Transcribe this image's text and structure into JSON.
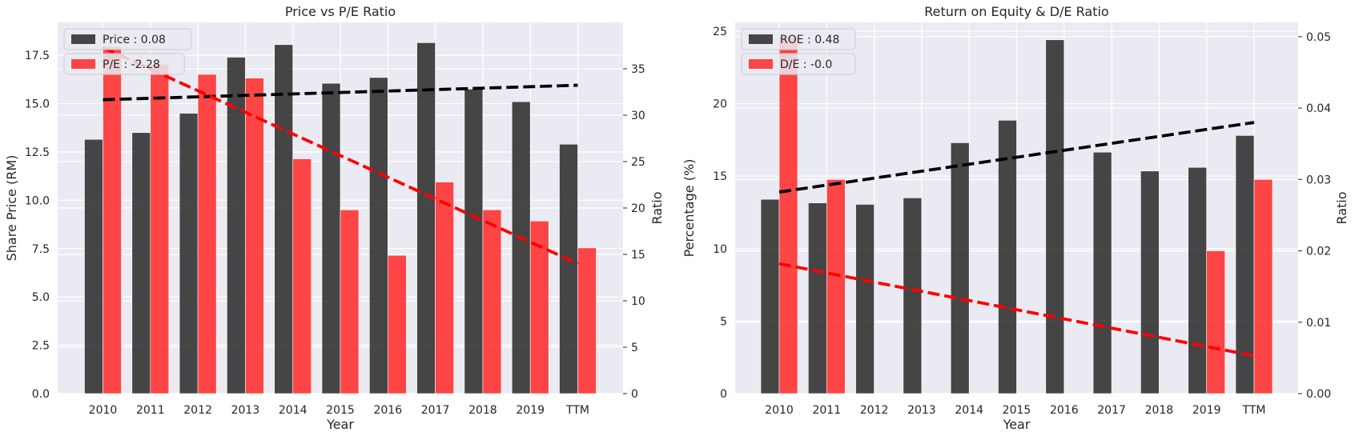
{
  "chart_data": [
    {
      "type": "bar",
      "title": "Price vs P/E Ratio",
      "xlabel": "Year",
      "ylabel": "Share Price (RM)",
      "ylabel_right": "Ratio",
      "categories": [
        "2010",
        "2011",
        "2012",
        "2013",
        "2014",
        "2015",
        "2016",
        "2017",
        "2018",
        "2019",
        "TTM"
      ],
      "ylim": [
        0,
        19.2
      ],
      "ylim_right": [
        0,
        40
      ],
      "yticks": [
        "0.0",
        "2.5",
        "5.0",
        "7.5",
        "10.0",
        "12.5",
        "15.0",
        "17.5"
      ],
      "yticks_right": [
        "0",
        "5",
        "10",
        "15",
        "20",
        "25",
        "30",
        "35"
      ],
      "grid": true,
      "legend_position": "top-left",
      "series": [
        {
          "name": "Price : 0.08",
          "axis": "left",
          "color": "#333333",
          "values": [
            13.15,
            13.5,
            14.5,
            17.4,
            18.05,
            16.05,
            16.35,
            18.15,
            15.75,
            15.1,
            12.9
          ]
        },
        {
          "name": "P/E : -2.28",
          "axis": "right",
          "color": "#ff3333",
          "values": [
            37.4,
            35.5,
            34.4,
            34.0,
            25.3,
            19.8,
            14.9,
            22.8,
            19.8,
            18.6,
            15.7
          ]
        }
      ],
      "trendlines": [
        {
          "axis": "left",
          "color": "#000000",
          "from": [
            0,
            15.2
          ],
          "to": [
            10,
            15.95
          ]
        },
        {
          "axis": "right",
          "color": "#ff0000",
          "from": [
            0,
            37.3
          ],
          "to": [
            10,
            14.0
          ]
        }
      ]
    },
    {
      "type": "bar",
      "title": "Return on Equity & D/E Ratio",
      "xlabel": "Year",
      "ylabel": "Percentage (%)",
      "ylabel_right": "Ratio",
      "categories": [
        "2010",
        "2011",
        "2012",
        "2013",
        "2014",
        "2015",
        "2016",
        "2017",
        "2018",
        "2019",
        "TTM"
      ],
      "ylim": [
        0,
        25.6
      ],
      "ylim_right": [
        0,
        0.052
      ],
      "yticks": [
        "0",
        "5",
        "10",
        "15",
        "20",
        "25"
      ],
      "yticks_right": [
        "0.00",
        "0.01",
        "0.02",
        "0.03",
        "0.04",
        "0.05"
      ],
      "grid": true,
      "legend_position": "top-left",
      "series": [
        {
          "name": "ROE : 0.48",
          "axis": "left",
          "color": "#333333",
          "values": [
            13.4,
            13.15,
            13.05,
            13.5,
            17.3,
            18.85,
            24.4,
            16.65,
            15.35,
            15.6,
            17.8
          ]
        },
        {
          "name": "D/E : -0.0",
          "axis": "right",
          "color": "#ff3333",
          "values": [
            0.05,
            0.03,
            0,
            0,
            0,
            0,
            0,
            0,
            0,
            0.02,
            0.03
          ]
        }
      ],
      "trendlines": [
        {
          "axis": "left",
          "color": "#000000",
          "from": [
            0,
            13.9
          ],
          "to": [
            10,
            18.7
          ]
        },
        {
          "axis": "right",
          "color": "#ff0000",
          "from": [
            0,
            0.0182
          ],
          "to": [
            10,
            0.0053
          ]
        }
      ]
    }
  ]
}
